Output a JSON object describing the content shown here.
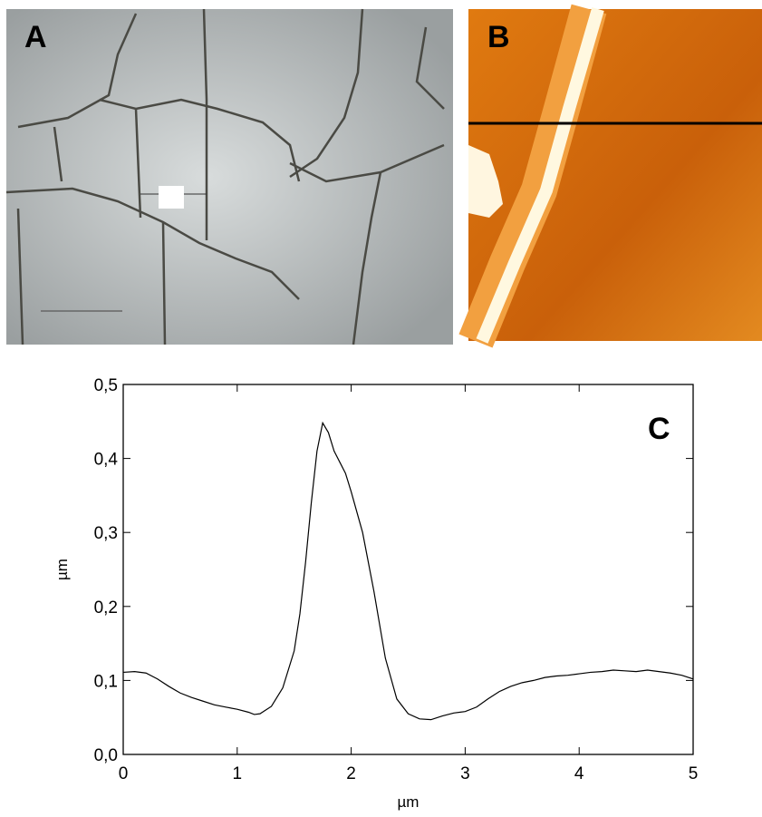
{
  "panels": {
    "a": "A",
    "b": "B"
  },
  "chart_data": {
    "type": "line",
    "annotation": "C",
    "x_label": "µm",
    "y_label": "µm",
    "x": [
      0,
      0.1,
      0.2,
      0.3,
      0.4,
      0.5,
      0.6,
      0.7,
      0.8,
      0.9,
      1.0,
      1.1,
      1.15,
      1.2,
      1.3,
      1.4,
      1.5,
      1.55,
      1.6,
      1.65,
      1.7,
      1.75,
      1.8,
      1.85,
      1.9,
      1.95,
      2.0,
      2.1,
      2.2,
      2.3,
      2.4,
      2.5,
      2.6,
      2.7,
      2.8,
      2.9,
      3.0,
      3.1,
      3.2,
      3.3,
      3.4,
      3.5,
      3.6,
      3.7,
      3.8,
      3.9,
      4.0,
      4.1,
      4.2,
      4.3,
      4.4,
      4.5,
      4.6,
      4.7,
      4.8,
      4.9,
      5.0
    ],
    "series": [
      {
        "color": "#000000",
        "values": [
          0.111,
          0.112,
          0.11,
          0.102,
          0.092,
          0.083,
          0.077,
          0.072,
          0.067,
          0.064,
          0.061,
          0.057,
          0.054,
          0.055,
          0.065,
          0.09,
          0.14,
          0.19,
          0.26,
          0.34,
          0.41,
          0.448,
          0.435,
          0.41,
          0.395,
          0.38,
          0.355,
          0.3,
          0.22,
          0.13,
          0.075,
          0.055,
          0.048,
          0.047,
          0.052,
          0.056,
          0.058,
          0.064,
          0.075,
          0.085,
          0.092,
          0.097,
          0.1,
          0.104,
          0.106,
          0.107,
          0.109,
          0.111,
          0.112,
          0.114,
          0.113,
          0.112,
          0.114,
          0.112,
          0.11,
          0.107,
          0.102
        ]
      }
    ],
    "xlim": [
      0,
      5
    ],
    "xticks": [
      0,
      1,
      2,
      3,
      4,
      5
    ],
    "ylim": [
      0,
      0.5
    ],
    "yticks": [
      {
        "value": 0,
        "label": "0,0"
      },
      {
        "value": 0.1,
        "label": "0,1"
      },
      {
        "value": 0.2,
        "label": "0,2"
      },
      {
        "value": 0.3,
        "label": "0,3"
      },
      {
        "value": 0.4,
        "label": "0,4"
      },
      {
        "value": 0.5,
        "label": "0,5"
      }
    ]
  }
}
